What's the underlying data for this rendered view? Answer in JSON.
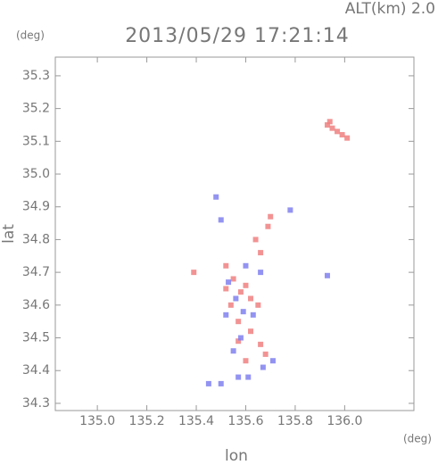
{
  "chart_data": {
    "type": "scatter",
    "title": "2013/05/29 17:21:14",
    "subtitle": "ALT(km) 2.0",
    "y_unit": "(deg)",
    "x_unit": "(deg)",
    "xlabel": "lon",
    "ylabel": "lat",
    "xlim": [
      134.83,
      136.28
    ],
    "ylim": [
      34.278,
      35.357
    ],
    "xticks": [
      {
        "value": 135.0,
        "label": "135.0"
      },
      135.2,
      135.4,
      135.6,
      135.8,
      {
        "value": 136.0,
        "label": "136.0"
      }
    ],
    "yticks": [
      35.3,
      35.2,
      35.1,
      {
        "value": 35.0,
        "label": "35.0"
      },
      34.9,
      34.8,
      34.7,
      34.6,
      34.5,
      34.4,
      34.3
    ],
    "series": [
      {
        "color": "#f08080",
        "x": [
          135.93,
          135.95,
          135.97,
          135.99,
          136.01,
          135.94,
          135.52,
          135.55,
          135.58,
          135.6,
          135.62,
          135.54,
          135.57,
          135.62,
          135.66,
          135.68,
          135.64,
          135.69,
          135.7,
          135.52,
          135.6,
          135.65,
          135.39,
          135.57,
          135.66
        ],
        "y": [
          35.15,
          35.14,
          35.13,
          35.12,
          35.11,
          35.16,
          34.72,
          34.68,
          34.64,
          34.66,
          34.62,
          34.6,
          34.55,
          34.52,
          34.48,
          34.45,
          34.8,
          34.84,
          34.87,
          34.65,
          34.43,
          34.6,
          34.7,
          34.49,
          34.76
        ]
      },
      {
        "color": "#8080f0",
        "x": [
          135.48,
          135.5,
          135.53,
          135.56,
          135.59,
          135.52,
          135.55,
          135.58,
          135.63,
          135.67,
          135.71,
          135.61,
          135.57,
          135.45,
          135.5,
          135.93,
          135.78,
          135.66,
          135.6
        ],
        "y": [
          34.93,
          34.86,
          34.67,
          34.62,
          34.58,
          34.57,
          34.46,
          34.5,
          34.57,
          34.41,
          34.43,
          34.38,
          34.38,
          34.36,
          34.36,
          34.69,
          34.89,
          34.7,
          34.72
        ]
      }
    ]
  }
}
